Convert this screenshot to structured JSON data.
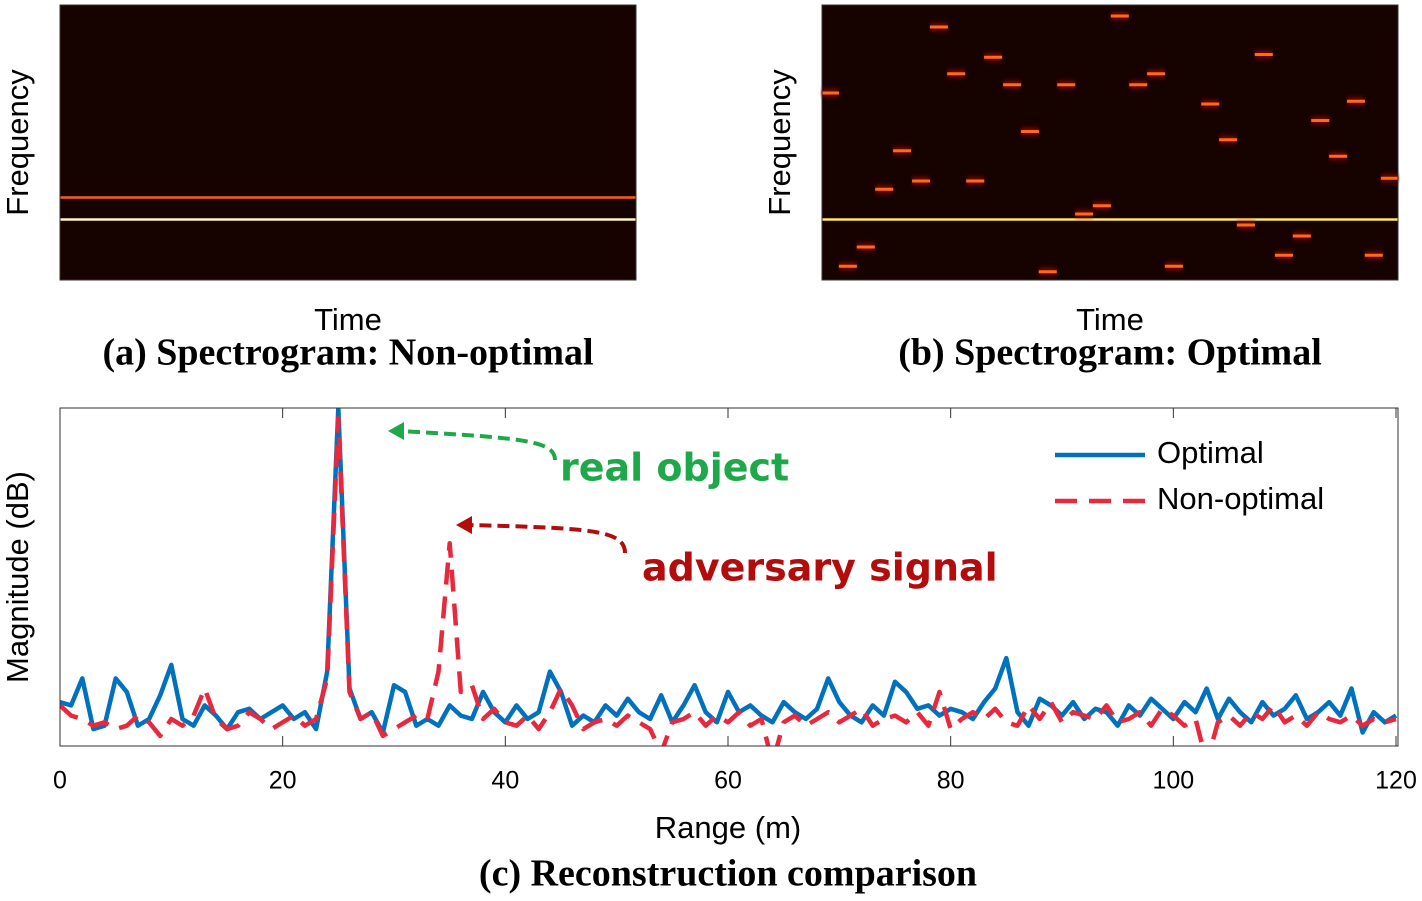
{
  "chart_data": [
    {
      "type": "spectrogram",
      "caption": "(a) Spectrogram: Non-optimal",
      "xlabel": "Time",
      "ylabel": "Frequency",
      "xlim": [
        0,
        1
      ],
      "ylim": [
        0,
        1
      ],
      "lines": [
        0.3,
        0.22
      ],
      "line_colors": [
        "#ff5a1a",
        "#fff2c8"
      ],
      "background": "#160300"
    },
    {
      "type": "spectrogram",
      "caption": "(b) Spectrogram: Optimal",
      "xlabel": "Time",
      "ylabel": "Frequency",
      "xlim": [
        0,
        1
      ],
      "ylim": [
        0,
        1
      ],
      "lines": [
        0.22
      ],
      "line_colors": [
        "#ffe860"
      ],
      "background": "#160300",
      "segments": {
        "color": "#ff6a1a",
        "times": [
          0.014,
          0.045,
          0.076,
          0.108,
          0.139,
          0.172,
          0.203,
          0.233,
          0.266,
          0.297,
          0.33,
          0.361,
          0.392,
          0.424,
          0.455,
          0.486,
          0.517,
          0.549,
          0.58,
          0.611,
          0.674,
          0.705,
          0.736,
          0.767,
          0.802,
          0.833,
          0.865,
          0.896,
          0.927,
          0.958,
          0.986
        ],
        "freqs": [
          0.68,
          0.05,
          0.12,
          0.33,
          0.47,
          0.36,
          0.92,
          0.75,
          0.36,
          0.81,
          0.71,
          0.54,
          0.03,
          0.71,
          0.24,
          0.27,
          0.96,
          0.71,
          0.75,
          0.05,
          0.64,
          0.51,
          0.2,
          0.82,
          0.09,
          0.16,
          0.58,
          0.45,
          0.65,
          0.09,
          0.37
        ]
      }
    },
    {
      "type": "line",
      "caption": "(c) Reconstruction comparison",
      "xlabel": "Range (m)",
      "ylabel": "Magnitude (dB)",
      "xlim": [
        0,
        120
      ],
      "ylim": [
        0,
        1
      ],
      "xticks": [
        0,
        20,
        40,
        60,
        80,
        100,
        120
      ],
      "legend": "upper right",
      "x": [
        0,
        1,
        2,
        3,
        4,
        5,
        6,
        7,
        8,
        9,
        10,
        11,
        12,
        13,
        14,
        15,
        16,
        17,
        18,
        19,
        20,
        21,
        22,
        23,
        24,
        25,
        26,
        27,
        28,
        29,
        30,
        31,
        32,
        33,
        34,
        35,
        36,
        37,
        38,
        39,
        40,
        41,
        42,
        43,
        44,
        45,
        46,
        47,
        48,
        49,
        50,
        51,
        52,
        53,
        54,
        55,
        56,
        57,
        58,
        59,
        60,
        61,
        62,
        63,
        64,
        65,
        66,
        67,
        68,
        69,
        70,
        71,
        72,
        73,
        74,
        75,
        76,
        77,
        78,
        79,
        80,
        81,
        82,
        83,
        84,
        85,
        86,
        87,
        88,
        89,
        90,
        91,
        92,
        93,
        94,
        95,
        96,
        97,
        98,
        99,
        100,
        101,
        102,
        103,
        104,
        105,
        106,
        107,
        108,
        109,
        110,
        111,
        112,
        113,
        114,
        115,
        116,
        117,
        118,
        119,
        120
      ],
      "series": [
        {
          "name": "Optimal",
          "color": "#0072bd",
          "dash": false,
          "values": [
            0.13,
            0.12,
            0.2,
            0.05,
            0.06,
            0.2,
            0.16,
            0.06,
            0.08,
            0.15,
            0.24,
            0.08,
            0.06,
            0.12,
            0.09,
            0.05,
            0.1,
            0.11,
            0.08,
            0.1,
            0.12,
            0.08,
            0.1,
            0.05,
            0.22,
            1.0,
            0.17,
            0.08,
            0.1,
            0.04,
            0.18,
            0.16,
            0.06,
            0.08,
            0.06,
            0.12,
            0.09,
            0.08,
            0.16,
            0.1,
            0.07,
            0.12,
            0.08,
            0.1,
            0.22,
            0.16,
            0.06,
            0.09,
            0.07,
            0.12,
            0.09,
            0.14,
            0.1,
            0.08,
            0.15,
            0.07,
            0.12,
            0.18,
            0.1,
            0.07,
            0.16,
            0.1,
            0.12,
            0.09,
            0.07,
            0.13,
            0.1,
            0.08,
            0.11,
            0.2,
            0.13,
            0.09,
            0.07,
            0.12,
            0.09,
            0.19,
            0.16,
            0.11,
            0.12,
            0.09,
            0.11,
            0.1,
            0.08,
            0.13,
            0.17,
            0.26,
            0.1,
            0.06,
            0.14,
            0.12,
            0.09,
            0.13,
            0.08,
            0.11,
            0.1,
            0.06,
            0.12,
            0.09,
            0.14,
            0.11,
            0.08,
            0.13,
            0.1,
            0.17,
            0.08,
            0.14,
            0.1,
            0.07,
            0.13,
            0.09,
            0.11,
            0.15,
            0.08,
            0.1,
            0.13,
            0.09,
            0.17,
            0.04,
            0.1,
            0.07,
            0.09
          ]
        },
        {
          "name": "Non-optimal",
          "color": "#e8283c",
          "dash": true,
          "values": [
            0.12,
            0.09,
            0.08,
            0.06,
            0.07,
            0.05,
            0.06,
            0.09,
            0.07,
            0.03,
            0.08,
            0.06,
            0.09,
            0.17,
            0.08,
            0.05,
            0.06,
            0.1,
            0.08,
            0.05,
            0.07,
            0.09,
            0.06,
            0.08,
            0.2,
            0.97,
            0.16,
            0.08,
            0.1,
            0.03,
            0.05,
            0.07,
            0.09,
            0.08,
            0.22,
            0.6,
            0.16,
            0.18,
            0.08,
            0.11,
            0.07,
            0.06,
            0.09,
            0.05,
            0.1,
            0.17,
            0.12,
            0.05,
            0.07,
            0.08,
            0.06,
            0.09,
            0.07,
            0.05,
            -0.02,
            0.07,
            0.08,
            0.1,
            0.06,
            0.09,
            0.07,
            0.1,
            0.06,
            0.08,
            -0.05,
            0.07,
            0.09,
            0.06,
            0.08,
            0.1,
            0.07,
            0.09,
            0.11,
            0.06,
            0.08,
            0.09,
            0.07,
            0.1,
            0.06,
            0.16,
            0.05,
            0.08,
            0.1,
            0.08,
            0.11,
            0.07,
            0.06,
            0.12,
            0.08,
            0.13,
            0.07,
            0.1,
            0.09,
            0.08,
            0.12,
            0.07,
            0.08,
            0.1,
            0.06,
            0.11,
            0.09,
            0.06,
            0.08,
            -0.05,
            0.07,
            0.09,
            0.06,
            0.1,
            0.08,
            0.12,
            0.07,
            0.09,
            0.06,
            0.1,
            0.08,
            0.07,
            0.09,
            0.06,
            0.08,
            0.07,
            0.08
          ]
        }
      ],
      "annotations": [
        {
          "text": "real object",
          "color": "#1fa84a"
        },
        {
          "text": "adversary signal",
          "color": "#b30c0c"
        }
      ]
    }
  ]
}
